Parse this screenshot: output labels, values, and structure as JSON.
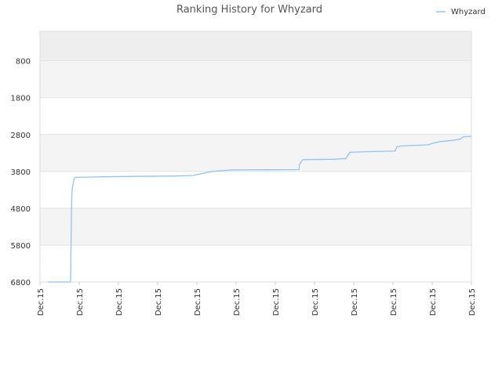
{
  "chart_data": {
    "type": "line",
    "title": "Ranking History for Whyzard",
    "xlabel": "",
    "ylabel": "",
    "ylim": [
      6800,
      0
    ],
    "y_inverted": true,
    "grid": true,
    "legend_position": "top-right",
    "y_ticks": [
      800,
      1800,
      2800,
      3800,
      4800,
      5800,
      6800
    ],
    "x_tick_labels": [
      "Dec.15",
      "Dec.15",
      "Dec.15",
      "Dec.15",
      "Dec.15",
      "Dec.15",
      "Dec.15",
      "Dec.15",
      "Dec.15",
      "Dec.15",
      "Dec.15",
      "Dec.15"
    ],
    "series": [
      {
        "name": "Whyzard",
        "color": "#90c4f2",
        "x": [
          0.2,
          0.6,
          0.78,
          0.8,
          0.81,
          0.82,
          0.84,
          0.86,
          0.88,
          0.9,
          1.4,
          2.4,
          3.4,
          3.9,
          4.4,
          4.9,
          5.8,
          6.6,
          6.62,
          6.7,
          7.5,
          7.8,
          7.9,
          8.5,
          9.05,
          9.1,
          9.2,
          9.9,
          10.0,
          10.2,
          10.5,
          10.7,
          10.8,
          11.0
        ],
        "y": [
          6800,
          6800,
          6800,
          5000,
          4500,
          4300,
          4150,
          4050,
          3980,
          3960,
          3950,
          3935,
          3925,
          3910,
          3800,
          3760,
          3755,
          3750,
          3600,
          3480,
          3470,
          3450,
          3280,
          3260,
          3250,
          3130,
          3110,
          3080,
          3040,
          2990,
          2960,
          2930,
          2860,
          2850
        ]
      }
    ]
  }
}
